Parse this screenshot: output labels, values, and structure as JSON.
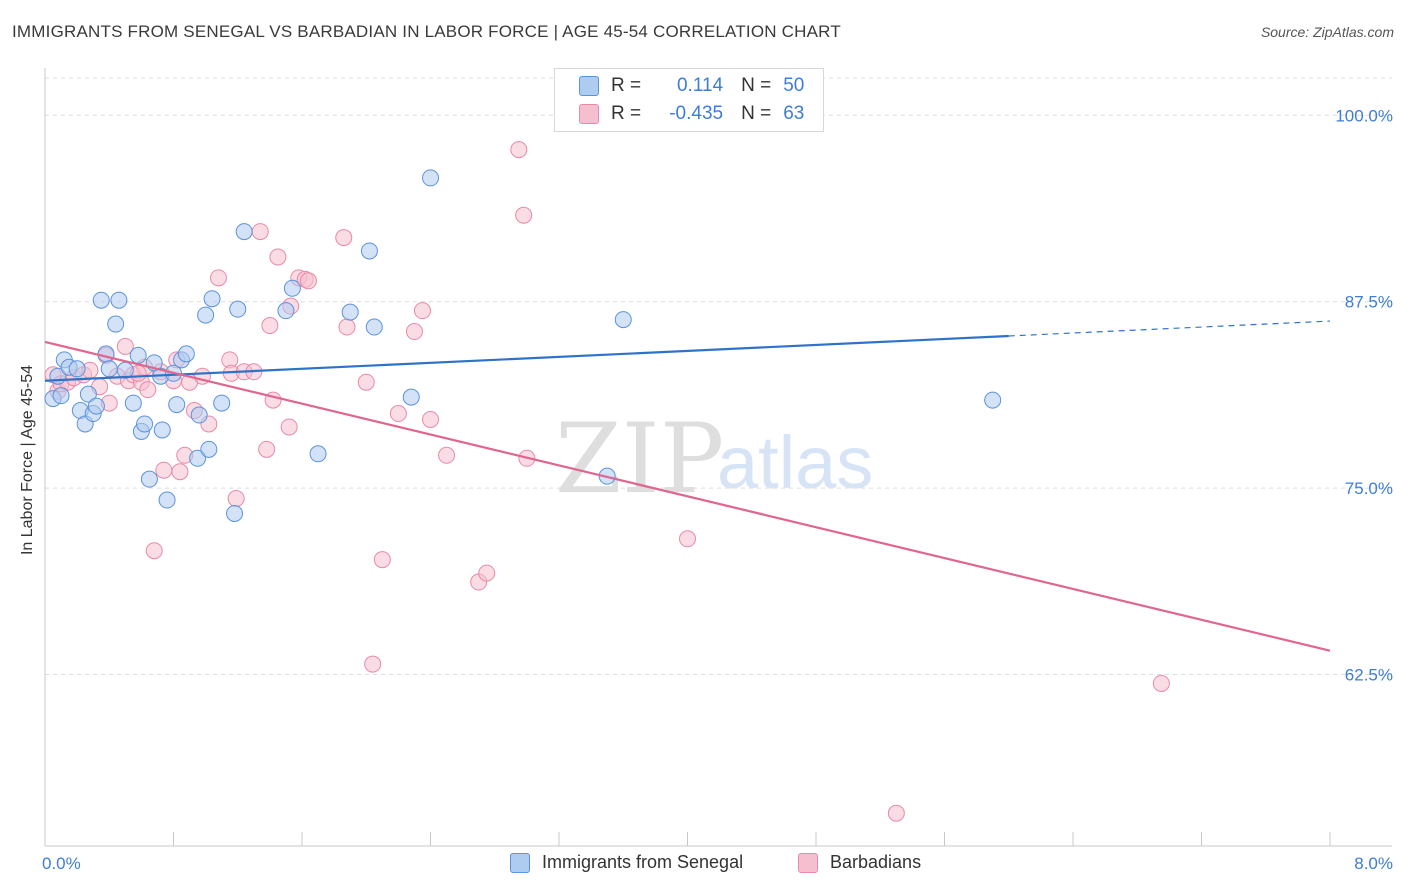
{
  "title": "IMMIGRANTS FROM SENEGAL VS BARBADIAN IN LABOR FORCE | AGE 45-54 CORRELATION CHART",
  "source": "Source: ZipAtlas.com",
  "watermark": {
    "zip": "ZIP",
    "atlas": "atlas"
  },
  "legend": {
    "r_label": "R =",
    "n_label": "N =",
    "rows": [
      {
        "r": "0.114",
        "n": "50"
      },
      {
        "r": "-0.435",
        "n": "63"
      }
    ]
  },
  "bottom_legend": [
    "Immigrants from Senegal",
    "Barbadians"
  ],
  "colors": {
    "blue_fill": "#aecbf0",
    "blue_stroke": "#5b93dc",
    "blue_line": "#2f73c9",
    "pink_fill": "#f5bfd0",
    "pink_stroke": "#e98aa8",
    "pink_line": "#e0658f",
    "axis_text": "#3d7dd8"
  },
  "chart_data": {
    "type": "scatter",
    "title": "IMMIGRANTS FROM SENEGAL VS BARBADIAN IN LABOR FORCE | AGE 45-54 CORRELATION CHART",
    "xlabel": "",
    "ylabel": "In Labor Force | Age 45-54",
    "xlim": [
      0.0,
      8.0
    ],
    "ylim": [
      51.0,
      102.5
    ],
    "x_tick_labels": [
      "0.0%",
      "8.0%"
    ],
    "y_ticks": [
      62.5,
      75.0,
      87.5,
      100.0
    ],
    "y_tick_labels": [
      "62.5%",
      "75.0%",
      "87.5%",
      "100.0%"
    ],
    "grid": true,
    "legend_position": "top-center",
    "series": [
      {
        "name": "Immigrants from Senegal",
        "r": 0.114,
        "n": 50,
        "trend": {
          "x0": 0.0,
          "y0": 82.2,
          "x1": 6.0,
          "y1": 85.2,
          "dashed_to_x": 8.0,
          "dashed_to_y": 86.2
        },
        "points": [
          [
            0.05,
            81.0
          ],
          [
            0.08,
            82.5
          ],
          [
            0.1,
            81.2
          ],
          [
            0.12,
            83.6
          ],
          [
            0.15,
            83.1
          ],
          [
            0.2,
            83.0
          ],
          [
            0.22,
            80.2
          ],
          [
            0.25,
            79.3
          ],
          [
            0.27,
            81.3
          ],
          [
            0.3,
            80.0
          ],
          [
            0.32,
            80.5
          ],
          [
            0.35,
            87.6
          ],
          [
            0.38,
            84.0
          ],
          [
            0.4,
            83.0
          ],
          [
            0.44,
            86.0
          ],
          [
            0.46,
            87.6
          ],
          [
            0.5,
            82.9
          ],
          [
            0.55,
            80.7
          ],
          [
            0.58,
            83.9
          ],
          [
            0.6,
            78.8
          ],
          [
            0.62,
            79.3
          ],
          [
            0.65,
            75.6
          ],
          [
            0.68,
            83.4
          ],
          [
            0.72,
            82.5
          ],
          [
            0.73,
            78.9
          ],
          [
            0.76,
            74.2
          ],
          [
            0.8,
            82.7
          ],
          [
            0.82,
            80.6
          ],
          [
            0.85,
            83.6
          ],
          [
            0.88,
            84.0
          ],
          [
            0.95,
            77.0
          ],
          [
            0.96,
            79.9
          ],
          [
            1.0,
            86.6
          ],
          [
            1.02,
            77.6
          ],
          [
            1.04,
            87.7
          ],
          [
            1.1,
            80.7
          ],
          [
            1.18,
            73.3
          ],
          [
            1.2,
            87.0
          ],
          [
            1.24,
            92.2
          ],
          [
            1.5,
            86.9
          ],
          [
            1.54,
            88.4
          ],
          [
            1.7,
            77.3
          ],
          [
            1.9,
            86.8
          ],
          [
            2.02,
            90.9
          ],
          [
            2.05,
            85.8
          ],
          [
            2.28,
            81.1
          ],
          [
            2.4,
            95.8
          ],
          [
            3.5,
            75.8
          ],
          [
            3.6,
            86.3
          ],
          [
            5.9,
            80.9
          ]
        ]
      },
      {
        "name": "Barbadians",
        "r": -0.435,
        "n": 63,
        "trend": {
          "x0": 0.0,
          "y0": 84.8,
          "x1": 8.0,
          "y1": 64.1
        },
        "points": [
          [
            0.05,
            82.6
          ],
          [
            0.08,
            81.5
          ],
          [
            0.1,
            82.0
          ],
          [
            0.14,
            82.1
          ],
          [
            0.18,
            82.4
          ],
          [
            0.24,
            82.6
          ],
          [
            0.28,
            82.9
          ],
          [
            0.34,
            81.8
          ],
          [
            0.38,
            83.9
          ],
          [
            0.4,
            80.7
          ],
          [
            0.45,
            82.5
          ],
          [
            0.5,
            84.5
          ],
          [
            0.52,
            82.2
          ],
          [
            0.55,
            82.6
          ],
          [
            0.6,
            82.1
          ],
          [
            0.62,
            83.1
          ],
          [
            0.64,
            81.6
          ],
          [
            0.68,
            70.8
          ],
          [
            0.72,
            82.8
          ],
          [
            0.74,
            76.2
          ],
          [
            0.8,
            82.2
          ],
          [
            0.82,
            83.6
          ],
          [
            0.84,
            76.1
          ],
          [
            0.87,
            77.2
          ],
          [
            0.9,
            82.1
          ],
          [
            0.93,
            80.2
          ],
          [
            0.98,
            82.5
          ],
          [
            1.02,
            79.3
          ],
          [
            1.08,
            89.1
          ],
          [
            1.15,
            83.6
          ],
          [
            1.16,
            82.7
          ],
          [
            1.19,
            74.3
          ],
          [
            1.24,
            82.8
          ],
          [
            1.3,
            82.8
          ],
          [
            1.34,
            92.2
          ],
          [
            1.38,
            77.6
          ],
          [
            1.4,
            85.9
          ],
          [
            1.42,
            80.9
          ],
          [
            1.45,
            90.5
          ],
          [
            1.52,
            79.1
          ],
          [
            1.53,
            87.2
          ],
          [
            1.58,
            89.1
          ],
          [
            1.62,
            89.0
          ],
          [
            1.64,
            88.9
          ],
          [
            1.86,
            91.8
          ],
          [
            1.88,
            85.8
          ],
          [
            2.0,
            82.1
          ],
          [
            2.04,
            63.2
          ],
          [
            2.1,
            70.2
          ],
          [
            2.2,
            80.0
          ],
          [
            2.3,
            85.5
          ],
          [
            2.35,
            86.9
          ],
          [
            2.4,
            79.6
          ],
          [
            2.5,
            77.2
          ],
          [
            2.7,
            68.7
          ],
          [
            2.75,
            69.3
          ],
          [
            2.95,
            97.7
          ],
          [
            2.98,
            93.3
          ],
          [
            3.0,
            77.0
          ],
          [
            4.0,
            71.6
          ],
          [
            5.3,
            53.2
          ],
          [
            6.95,
            61.9
          ],
          [
            0.58,
            82.7
          ]
        ]
      }
    ]
  }
}
